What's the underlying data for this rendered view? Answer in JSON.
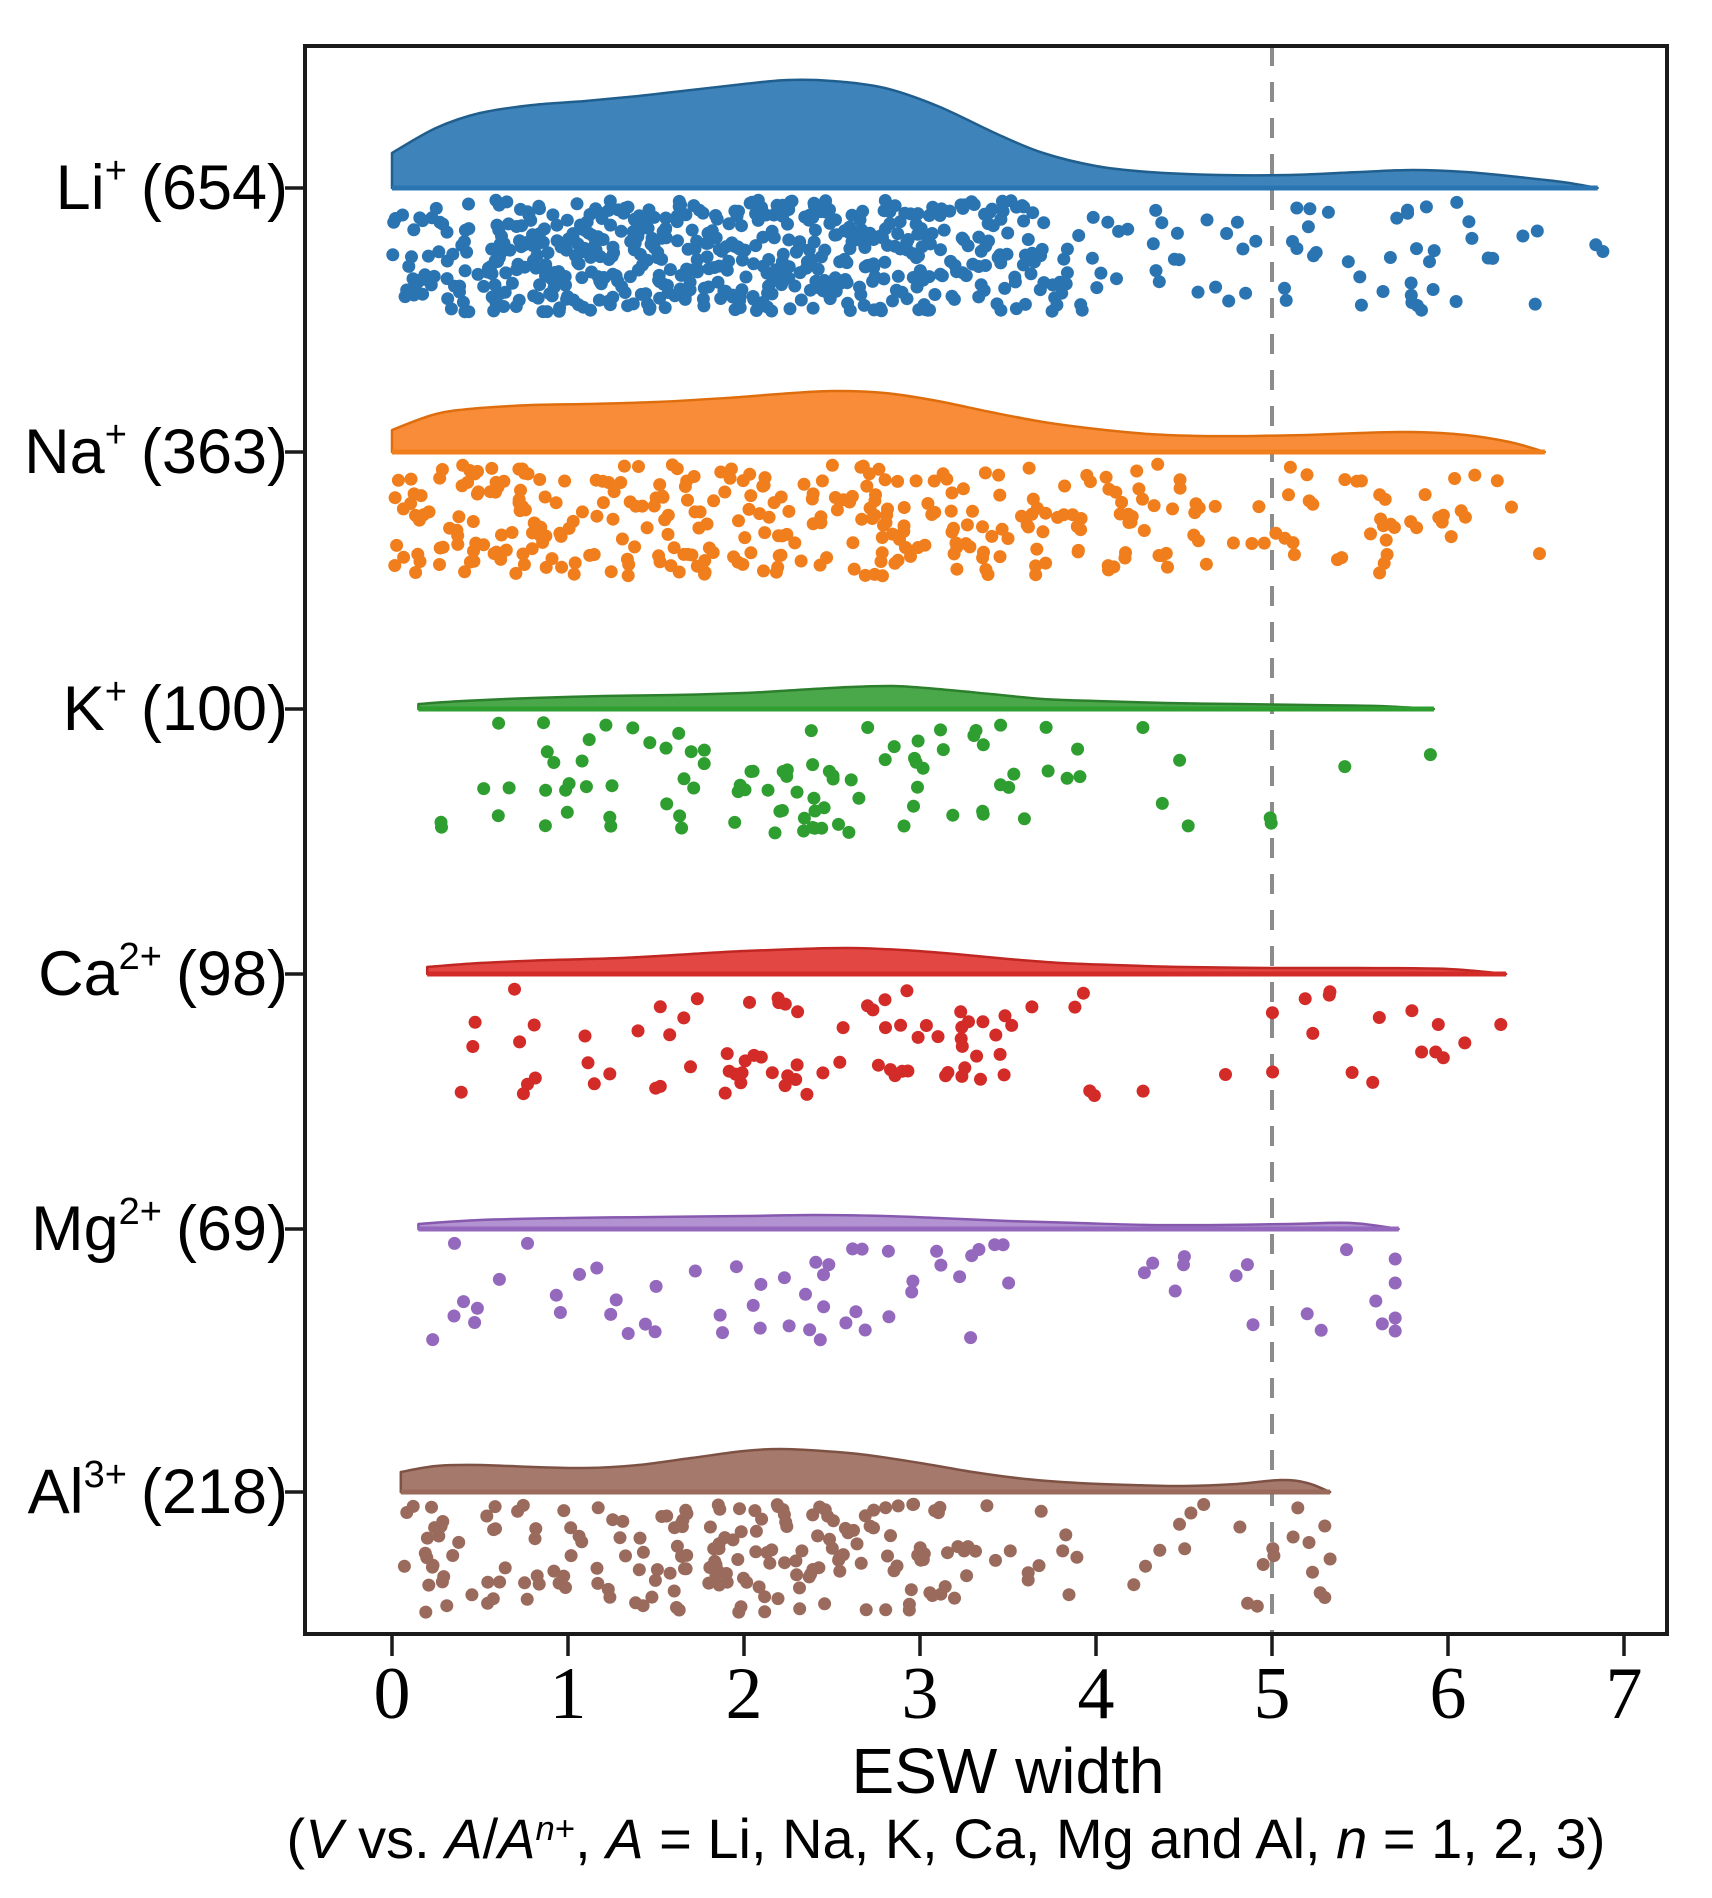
{
  "chart_data": {
    "type": "raincloud",
    "description": "Half-violin density curves with jittered strip points below each baseline",
    "xlabel": "ESW width",
    "subtitle_plain": "(V vs. A/An+, A = Li, Na, K, Ca, Mg and Al, n = 1, 2, 3)",
    "subtitle_segments": [
      {
        "t": "(",
        "i": false,
        "sup": false
      },
      {
        "t": "V",
        "i": true,
        "sup": false
      },
      {
        "t": " vs. ",
        "i": false,
        "sup": false
      },
      {
        "t": "A",
        "i": true,
        "sup": false
      },
      {
        "t": "/",
        "i": false,
        "sup": false
      },
      {
        "t": "A",
        "i": true,
        "sup": false
      },
      {
        "t": "n",
        "i": true,
        "sup": true
      },
      {
        "t": "+",
        "i": false,
        "sup": true
      },
      {
        "t": ", ",
        "i": false,
        "sup": false
      },
      {
        "t": "A",
        "i": true,
        "sup": false
      },
      {
        "t": " = Li, Na, K, Ca, Mg and Al, ",
        "i": false,
        "sup": false
      },
      {
        "t": "n",
        "i": true,
        "sup": false
      },
      {
        "t": " = 1, 2, 3)",
        "i": false,
        "sup": false
      }
    ],
    "x_ticks": [
      "0",
      "1",
      "2",
      "3",
      "4",
      "5",
      "6",
      "7"
    ],
    "x_tick_values": [
      0,
      1,
      2,
      3,
      4,
      5,
      6,
      7
    ],
    "xlim": [
      -0.5,
      7.25
    ],
    "dashed_line_x": 5,
    "dashed_line_color": "#8C8C8C",
    "frame_color": "#1a1a1a",
    "series": [
      {
        "ion": "Li",
        "charge": "+",
        "count": 654,
        "count_label": "(654)",
        "fill": "#3E83B9",
        "stroke": "#205E8E",
        "dot": "#2B74B2",
        "x_range": [
          0,
          6.85
        ],
        "seed": 11,
        "density": [
          [
            0,
            35
          ],
          [
            0.25,
            60
          ],
          [
            0.5,
            75
          ],
          [
            0.8,
            83
          ],
          [
            1.1,
            87
          ],
          [
            1.4,
            92
          ],
          [
            1.7,
            98
          ],
          [
            2.0,
            104
          ],
          [
            2.25,
            108
          ],
          [
            2.5,
            107
          ],
          [
            2.8,
            100
          ],
          [
            3.1,
            82
          ],
          [
            3.45,
            53
          ],
          [
            3.7,
            35
          ],
          [
            4.0,
            22
          ],
          [
            4.3,
            16
          ],
          [
            4.7,
            13
          ],
          [
            5.1,
            13
          ],
          [
            5.5,
            16
          ],
          [
            5.8,
            18
          ],
          [
            6.1,
            16
          ],
          [
            6.4,
            11
          ],
          [
            6.65,
            6
          ],
          [
            6.85,
            0
          ]
        ],
        "outliers": [
          [
            6.84,
            0.4
          ],
          [
            6.88,
            0.46
          ]
        ]
      },
      {
        "ion": "Na",
        "charge": "+",
        "count": 363,
        "count_label": "(363)",
        "fill": "#F98C38",
        "stroke": "#DE6E0D",
        "dot": "#F07E1C",
        "x_range": [
          0,
          6.55
        ],
        "seed": 22,
        "density": [
          [
            0,
            22
          ],
          [
            0.25,
            38
          ],
          [
            0.5,
            44
          ],
          [
            0.8,
            47
          ],
          [
            1.1,
            48
          ],
          [
            1.5,
            50
          ],
          [
            1.9,
            54
          ],
          [
            2.2,
            58
          ],
          [
            2.5,
            61
          ],
          [
            2.8,
            59
          ],
          [
            3.1,
            51
          ],
          [
            3.4,
            40
          ],
          [
            3.7,
            30
          ],
          [
            4.0,
            23
          ],
          [
            4.3,
            18
          ],
          [
            4.6,
            16
          ],
          [
            4.9,
            16
          ],
          [
            5.2,
            17
          ],
          [
            5.5,
            19
          ],
          [
            5.8,
            20
          ],
          [
            6.1,
            17
          ],
          [
            6.35,
            10
          ],
          [
            6.55,
            0
          ]
        ],
        "outliers": [
          [
            6.52,
            0.8
          ],
          [
            6.28,
            0.15
          ]
        ]
      },
      {
        "ion": "K",
        "charge": "+",
        "count": 100,
        "count_label": "(100)",
        "fill": "#4AA84A",
        "stroke": "#2C7F2C",
        "dot": "#2F9E30",
        "x_range": [
          0.15,
          5.92
        ],
        "seed": 33,
        "density": [
          [
            0.15,
            5
          ],
          [
            0.4,
            8
          ],
          [
            0.8,
            11
          ],
          [
            1.2,
            13
          ],
          [
            1.6,
            14
          ],
          [
            2.0,
            16
          ],
          [
            2.3,
            19
          ],
          [
            2.6,
            22
          ],
          [
            2.85,
            23
          ],
          [
            3.1,
            20
          ],
          [
            3.4,
            15
          ],
          [
            3.7,
            10
          ],
          [
            4.0,
            8
          ],
          [
            4.4,
            6
          ],
          [
            4.8,
            5
          ],
          [
            5.2,
            4
          ],
          [
            5.6,
            3
          ],
          [
            5.92,
            0
          ]
        ],
        "outliers": [
          [
            5.9,
            0.3
          ]
        ]
      },
      {
        "ion": "Ca",
        "charge": "2+",
        "count": 98,
        "count_label": "(98)",
        "fill": "#E24744",
        "stroke": "#C02622",
        "dot": "#D32B27",
        "x_range": [
          0.2,
          6.33
        ],
        "seed": 44,
        "density": [
          [
            0.2,
            7
          ],
          [
            0.5,
            11
          ],
          [
            0.9,
            14
          ],
          [
            1.3,
            16
          ],
          [
            1.7,
            20
          ],
          [
            2.0,
            23
          ],
          [
            2.3,
            25
          ],
          [
            2.6,
            26
          ],
          [
            2.9,
            24
          ],
          [
            3.2,
            20
          ],
          [
            3.5,
            15
          ],
          [
            3.8,
            11
          ],
          [
            4.1,
            9
          ],
          [
            4.5,
            7
          ],
          [
            5.0,
            6
          ],
          [
            5.5,
            6
          ],
          [
            6.0,
            5
          ],
          [
            6.33,
            0
          ]
        ],
        "outliers": [
          [
            5.85,
            0.6
          ],
          [
            5.93,
            0.6
          ],
          [
            6.3,
            0.35
          ]
        ]
      },
      {
        "ion": "Mg",
        "charge": "2+",
        "count": 69,
        "count_label": "(69)",
        "fill": "#B392D2",
        "stroke": "#8659AE",
        "dot": "#9468BD",
        "x_range": [
          0.15,
          5.72
        ],
        "seed": 55,
        "density": [
          [
            0.15,
            5
          ],
          [
            0.5,
            9
          ],
          [
            1.0,
            11
          ],
          [
            1.5,
            12
          ],
          [
            2.0,
            13
          ],
          [
            2.4,
            14
          ],
          [
            2.8,
            13
          ],
          [
            3.1,
            11
          ],
          [
            3.5,
            8
          ],
          [
            3.9,
            6
          ],
          [
            4.3,
            4
          ],
          [
            4.7,
            4
          ],
          [
            5.1,
            5
          ],
          [
            5.45,
            6
          ],
          [
            5.72,
            0
          ]
        ],
        "outliers": [
          [
            5.7,
            0.18
          ],
          [
            5.7,
            0.42
          ],
          [
            5.59,
            0.6
          ],
          [
            5.7,
            0.77
          ],
          [
            5.7,
            0.9
          ],
          [
            4.45,
            0.5
          ]
        ]
      },
      {
        "ion": "Al",
        "charge": "3+",
        "count": 218,
        "count_label": "(218)",
        "fill": "#A5796B",
        "stroke": "#7D5244",
        "dot": "#9A6A5C",
        "x_range": [
          0.05,
          5.33
        ],
        "seed": 66,
        "density": [
          [
            0.05,
            20
          ],
          [
            0.25,
            26
          ],
          [
            0.5,
            27
          ],
          [
            0.8,
            25
          ],
          [
            1.1,
            24
          ],
          [
            1.4,
            27
          ],
          [
            1.7,
            34
          ],
          [
            2.0,
            41
          ],
          [
            2.2,
            43
          ],
          [
            2.45,
            41
          ],
          [
            2.7,
            37
          ],
          [
            3.0,
            29
          ],
          [
            3.3,
            20
          ],
          [
            3.6,
            13
          ],
          [
            3.9,
            9
          ],
          [
            4.2,
            7
          ],
          [
            4.5,
            6
          ],
          [
            4.8,
            8
          ],
          [
            5.05,
            12
          ],
          [
            5.2,
            9
          ],
          [
            5.33,
            0
          ]
        ],
        "outliers": [
          [
            5.3,
            0.2
          ],
          [
            5.33,
            0.5
          ],
          [
            5.21,
            0.35
          ],
          [
            5.23,
            0.62
          ],
          [
            5.12,
            0.3
          ],
          [
            5.3,
            0.85
          ],
          [
            4.95,
            0.55
          ]
        ]
      }
    ]
  }
}
